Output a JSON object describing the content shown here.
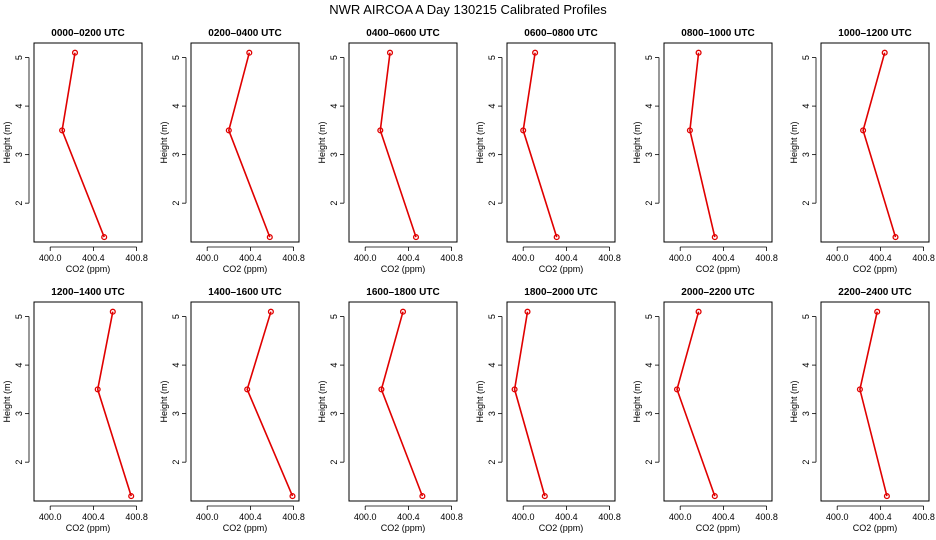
{
  "figure_title": "NWR AIRCOA A  Day 130215  Calibrated Profiles",
  "colors": {
    "series": "#e00000",
    "axis": "#000000",
    "background": "#ffffff"
  },
  "chart_data": [
    {
      "type": "line",
      "title": "0000–0200 UTC",
      "xlabel": "CO2 (ppm)",
      "ylabel": "Height (m)",
      "xlim": [
        399.85,
        400.85
      ],
      "ylim": [
        1.2,
        5.3
      ],
      "xticks": [
        "400.0",
        "400.4",
        "400.8"
      ],
      "yticks": [
        "2",
        "3",
        "4",
        "5"
      ],
      "x": [
        400.23,
        400.11,
        400.5
      ],
      "y": [
        5.1,
        3.5,
        1.3
      ]
    },
    {
      "type": "line",
      "title": "0200–0400 UTC",
      "xlabel": "CO2 (ppm)",
      "ylabel": "Height (m)",
      "xlim": [
        399.85,
        400.85
      ],
      "ylim": [
        1.2,
        5.3
      ],
      "xticks": [
        "400.0",
        "400.4",
        "400.8"
      ],
      "yticks": [
        "2",
        "3",
        "4",
        "5"
      ],
      "x": [
        400.39,
        400.2,
        400.58
      ],
      "y": [
        5.1,
        3.5,
        1.3
      ]
    },
    {
      "type": "line",
      "title": "0400–0600 UTC",
      "xlabel": "CO2 (ppm)",
      "ylabel": "Height (m)",
      "xlim": [
        399.85,
        400.85
      ],
      "ylim": [
        1.2,
        5.3
      ],
      "xticks": [
        "400.0",
        "400.4",
        "400.8"
      ],
      "yticks": [
        "2",
        "3",
        "4",
        "5"
      ],
      "x": [
        400.23,
        400.14,
        400.47
      ],
      "y": [
        5.1,
        3.5,
        1.3
      ]
    },
    {
      "type": "line",
      "title": "0600–0800 UTC",
      "xlabel": "CO2 (ppm)",
      "ylabel": "Height (m)",
      "xlim": [
        399.85,
        400.85
      ],
      "ylim": [
        1.2,
        5.3
      ],
      "xticks": [
        "400.0",
        "400.4",
        "400.8"
      ],
      "yticks": [
        "2",
        "3",
        "4",
        "5"
      ],
      "x": [
        400.11,
        400.0,
        400.31
      ],
      "y": [
        5.1,
        3.5,
        1.3
      ]
    },
    {
      "type": "line",
      "title": "0800–1000 UTC",
      "xlabel": "CO2 (ppm)",
      "ylabel": "Height (m)",
      "xlim": [
        399.85,
        400.85
      ],
      "ylim": [
        1.2,
        5.3
      ],
      "xticks": [
        "400.0",
        "400.4",
        "400.8"
      ],
      "yticks": [
        "2",
        "3",
        "4",
        "5"
      ],
      "x": [
        400.17,
        400.09,
        400.32
      ],
      "y": [
        5.1,
        3.5,
        1.3
      ]
    },
    {
      "type": "line",
      "title": "1000–1200 UTC",
      "xlabel": "CO2 (ppm)",
      "ylabel": "Height (m)",
      "xlim": [
        399.85,
        400.85
      ],
      "ylim": [
        1.2,
        5.3
      ],
      "xticks": [
        "400.0",
        "400.4",
        "400.8"
      ],
      "yticks": [
        "2",
        "3",
        "4",
        "5"
      ],
      "x": [
        400.44,
        400.24,
        400.54
      ],
      "y": [
        5.1,
        3.5,
        1.3
      ]
    },
    {
      "type": "line",
      "title": "1200–1400 UTC",
      "xlabel": "CO2 (ppm)",
      "ylabel": "Height (m)",
      "xlim": [
        399.85,
        400.85
      ],
      "ylim": [
        1.2,
        5.3
      ],
      "xticks": [
        "400.0",
        "400.4",
        "400.8"
      ],
      "yticks": [
        "2",
        "3",
        "4",
        "5"
      ],
      "x": [
        400.58,
        400.44,
        400.75
      ],
      "y": [
        5.1,
        3.5,
        1.3
      ]
    },
    {
      "type": "line",
      "title": "1400–1600 UTC",
      "xlabel": "CO2 (ppm)",
      "ylabel": "Height (m)",
      "xlim": [
        399.85,
        400.85
      ],
      "ylim": [
        1.2,
        5.3
      ],
      "xticks": [
        "400.0",
        "400.4",
        "400.8"
      ],
      "yticks": [
        "2",
        "3",
        "4",
        "5"
      ],
      "x": [
        400.59,
        400.37,
        400.79
      ],
      "y": [
        5.1,
        3.5,
        1.3
      ]
    },
    {
      "type": "line",
      "title": "1600–1800 UTC",
      "xlabel": "CO2 (ppm)",
      "ylabel": "Height (m)",
      "xlim": [
        399.85,
        400.85
      ],
      "ylim": [
        1.2,
        5.3
      ],
      "xticks": [
        "400.0",
        "400.4",
        "400.8"
      ],
      "yticks": [
        "2",
        "3",
        "4",
        "5"
      ],
      "x": [
        400.35,
        400.15,
        400.53
      ],
      "y": [
        5.1,
        3.5,
        1.3
      ]
    },
    {
      "type": "line",
      "title": "1800–2000 UTC",
      "xlabel": "CO2 (ppm)",
      "ylabel": "Height (m)",
      "xlim": [
        399.85,
        400.85
      ],
      "ylim": [
        1.2,
        5.3
      ],
      "xticks": [
        "400.0",
        "400.4",
        "400.8"
      ],
      "yticks": [
        "2",
        "3",
        "4",
        "5"
      ],
      "x": [
        400.04,
        399.92,
        400.2
      ],
      "y": [
        5.1,
        3.5,
        1.3
      ]
    },
    {
      "type": "line",
      "title": "2000–2200 UTC",
      "xlabel": "CO2 (ppm)",
      "ylabel": "Height (m)",
      "xlim": [
        399.85,
        400.85
      ],
      "ylim": [
        1.2,
        5.3
      ],
      "xticks": [
        "400.0",
        "400.4",
        "400.8"
      ],
      "yticks": [
        "2",
        "3",
        "4",
        "5"
      ],
      "x": [
        400.17,
        399.97,
        400.32
      ],
      "y": [
        5.1,
        3.5,
        1.3
      ]
    },
    {
      "type": "line",
      "title": "2200–2400 UTC",
      "xlabel": "CO2 (ppm)",
      "ylabel": "Height (m)",
      "xlim": [
        399.85,
        400.85
      ],
      "ylim": [
        1.2,
        5.3
      ],
      "xticks": [
        "400.0",
        "400.4",
        "400.8"
      ],
      "yticks": [
        "2",
        "3",
        "4",
        "5"
      ],
      "x": [
        400.37,
        400.21,
        400.46
      ],
      "y": [
        5.1,
        3.5,
        1.3
      ]
    }
  ]
}
